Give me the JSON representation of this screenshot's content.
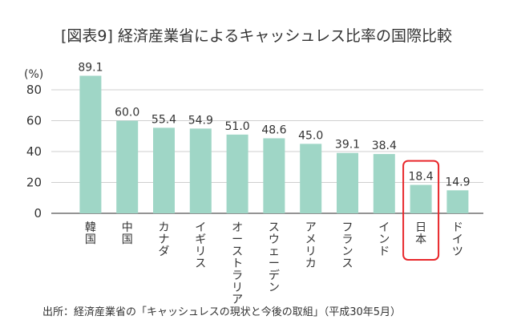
{
  "chart_data": {
    "type": "bar",
    "title": "[図表9] 経済産業省によるキャッシュレス比率の国際比較",
    "ylabel": "(%)",
    "ylim": [
      0,
      90
    ],
    "yticks": [
      0,
      20,
      40,
      60,
      80
    ],
    "grid": true,
    "categories": [
      "韓国",
      "中国",
      "カナダ",
      "イギリス",
      "オーストラリア",
      "スウェーデン",
      "アメリカ",
      "フランス",
      "インド",
      "日本",
      "ドイツ"
    ],
    "values": [
      89.1,
      60.0,
      55.4,
      54.9,
      51.0,
      48.6,
      45.0,
      39.1,
      38.4,
      18.4,
      14.9
    ],
    "value_labels": [
      "89.1",
      "60.0",
      "55.4",
      "54.9",
      "51.0",
      "48.6",
      "45.0",
      "39.1",
      "38.4",
      "18.4",
      "14.9"
    ],
    "highlight": "日本",
    "source": "出所：経済産業省の「キャッシュレスの現状と今後の取組」（平成30年5月）"
  },
  "colors": {
    "bar": "#9fd6c6",
    "highlight_box": "#e8262a",
    "grid": "#cfcfcf",
    "axis": "#555555",
    "text": "#333333"
  }
}
